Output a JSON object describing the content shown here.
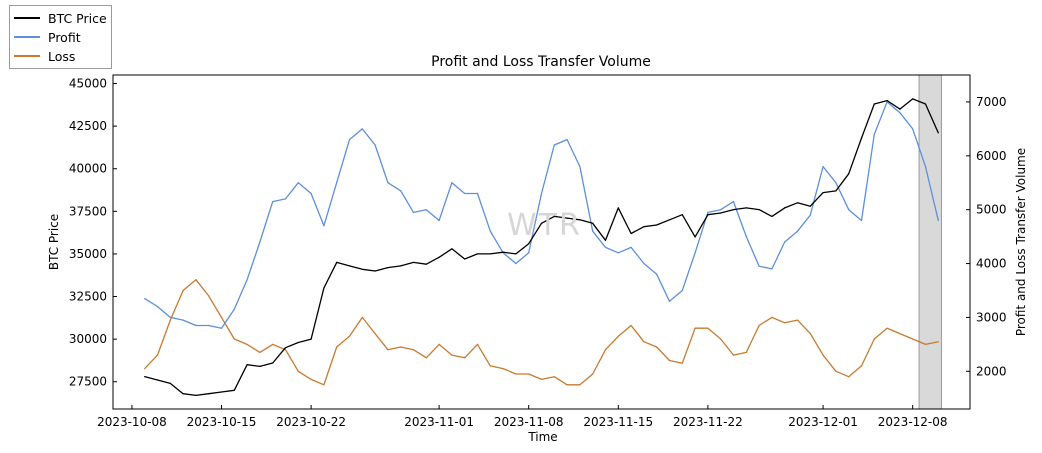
{
  "chart_data": {
    "type": "line",
    "title": "Profit and Loss Transfer Volume",
    "xlabel": "Time",
    "ylabel": "BTC Price",
    "y2label": "Profit and Loss Transfer Volume",
    "x_range": [
      "2023-10-09",
      "2023-12-10"
    ],
    "ylim": [
      25900,
      45500
    ],
    "y2lim": [
      1300,
      7500
    ],
    "x_ticks": [
      "2023-10-08",
      "2023-10-15",
      "2023-10-22",
      "2023-11-01",
      "2023-11-08",
      "2023-11-15",
      "2023-11-22",
      "2023-12-01",
      "2023-12-08"
    ],
    "y_ticks": [
      27500,
      30000,
      32500,
      35000,
      37500,
      40000,
      42500,
      45000
    ],
    "y_tick_labels": [
      "27500",
      "30000",
      "32500",
      "35000",
      "37500",
      "40000",
      "42500",
      "45000"
    ],
    "y2_ticks": [
      2000,
      3000,
      4000,
      5000,
      6000,
      7000
    ],
    "y2_tick_labels": [
      "2000",
      "3000",
      "4000",
      "5000",
      "6000",
      "7000"
    ],
    "shaded_region": {
      "start": "2023-12-08 12:00",
      "end": "2023-12-10 06:00"
    },
    "watermark": "WTR",
    "legend": {
      "position": "outside-top-left",
      "entries": [
        "BTC Price",
        "Profit",
        "Loss"
      ]
    },
    "series": [
      {
        "name": "BTC Price",
        "axis": "left",
        "color": "#000000",
        "x": [
          "2023-10-09",
          "2023-10-10",
          "2023-10-11",
          "2023-10-12",
          "2023-10-13",
          "2023-10-14",
          "2023-10-15",
          "2023-10-16",
          "2023-10-17",
          "2023-10-18",
          "2023-10-19",
          "2023-10-20",
          "2023-10-21",
          "2023-10-22",
          "2023-10-23",
          "2023-10-24",
          "2023-10-25",
          "2023-10-26",
          "2023-10-27",
          "2023-10-28",
          "2023-10-29",
          "2023-10-30",
          "2023-10-31",
          "2023-11-01",
          "2023-11-02",
          "2023-11-03",
          "2023-11-04",
          "2023-11-05",
          "2023-11-06",
          "2023-11-07",
          "2023-11-08",
          "2023-11-09",
          "2023-11-10",
          "2023-11-11",
          "2023-11-12",
          "2023-11-13",
          "2023-11-14",
          "2023-11-15",
          "2023-11-16",
          "2023-11-17",
          "2023-11-18",
          "2023-11-19",
          "2023-11-20",
          "2023-11-21",
          "2023-11-22",
          "2023-11-23",
          "2023-11-24",
          "2023-11-25",
          "2023-11-26",
          "2023-11-27",
          "2023-11-28",
          "2023-11-29",
          "2023-11-30",
          "2023-12-01",
          "2023-12-02",
          "2023-12-03",
          "2023-12-04",
          "2023-12-05",
          "2023-12-06",
          "2023-12-07",
          "2023-12-08",
          "2023-12-09",
          "2023-12-10"
        ],
        "values": [
          27800,
          27600,
          27400,
          26800,
          26700,
          26800,
          26900,
          27000,
          28500,
          28400,
          28600,
          29500,
          29800,
          30000,
          33000,
          34500,
          34300,
          34100,
          34000,
          34200,
          34300,
          34500,
          34400,
          34800,
          35300,
          34700,
          35000,
          35000,
          35100,
          35000,
          35600,
          36800,
          37200,
          37100,
          37000,
          36800,
          35800,
          37700,
          36200,
          36600,
          36700,
          37000,
          37300,
          36000,
          37300,
          37400,
          37600,
          37700,
          37600,
          37200,
          37700,
          38000,
          37800,
          38600,
          38700,
          39700,
          41800,
          43800,
          44000,
          43500,
          44100,
          43800,
          42100
        ]
      },
      {
        "name": "Profit",
        "axis": "right",
        "color": "#5d8fdb",
        "x": [
          "2023-10-09",
          "2023-10-10",
          "2023-10-11",
          "2023-10-12",
          "2023-10-13",
          "2023-10-14",
          "2023-10-15",
          "2023-10-16",
          "2023-10-17",
          "2023-10-18",
          "2023-10-19",
          "2023-10-20",
          "2023-10-21",
          "2023-10-22",
          "2023-10-23",
          "2023-10-24",
          "2023-10-25",
          "2023-10-26",
          "2023-10-27",
          "2023-10-28",
          "2023-10-29",
          "2023-10-30",
          "2023-10-31",
          "2023-11-01",
          "2023-11-02",
          "2023-11-03",
          "2023-11-04",
          "2023-11-05",
          "2023-11-06",
          "2023-11-07",
          "2023-11-08",
          "2023-11-09",
          "2023-11-10",
          "2023-11-11",
          "2023-11-12",
          "2023-11-13",
          "2023-11-14",
          "2023-11-15",
          "2023-11-16",
          "2023-11-17",
          "2023-11-18",
          "2023-11-19",
          "2023-11-20",
          "2023-11-21",
          "2023-11-22",
          "2023-11-23",
          "2023-11-24",
          "2023-11-25",
          "2023-11-26",
          "2023-11-27",
          "2023-11-28",
          "2023-11-29",
          "2023-11-30",
          "2023-12-01",
          "2023-12-02",
          "2023-12-03",
          "2023-12-04",
          "2023-12-05",
          "2023-12-06",
          "2023-12-07",
          "2023-12-08",
          "2023-12-09",
          "2023-12-10"
        ],
        "values": [
          3350,
          3200,
          3000,
          2950,
          2850,
          2850,
          2800,
          3150,
          3700,
          4400,
          5150,
          5200,
          5500,
          5300,
          4700,
          5500,
          6300,
          6500,
          6200,
          5500,
          5350,
          4950,
          5000,
          4800,
          5500,
          5300,
          5300,
          4600,
          4200,
          4000,
          4200,
          5300,
          6200,
          6300,
          5800,
          4600,
          4300,
          4200,
          4300,
          4000,
          3800,
          3300,
          3500,
          4200,
          4950,
          5000,
          5150,
          4500,
          3950,
          3900,
          4400,
          4600,
          4900,
          5800,
          5500,
          5000,
          4800,
          6400,
          7000,
          6800,
          6500,
          5800,
          4800
        ]
      },
      {
        "name": "Loss",
        "axis": "right",
        "color": "#c77a2e",
        "x": [
          "2023-10-09",
          "2023-10-10",
          "2023-10-11",
          "2023-10-12",
          "2023-10-13",
          "2023-10-14",
          "2023-10-15",
          "2023-10-16",
          "2023-10-17",
          "2023-10-18",
          "2023-10-19",
          "2023-10-20",
          "2023-10-21",
          "2023-10-22",
          "2023-10-23",
          "2023-10-24",
          "2023-10-25",
          "2023-10-26",
          "2023-10-27",
          "2023-10-28",
          "2023-10-29",
          "2023-10-30",
          "2023-10-31",
          "2023-11-01",
          "2023-11-02",
          "2023-11-03",
          "2023-11-04",
          "2023-11-05",
          "2023-11-06",
          "2023-11-07",
          "2023-11-08",
          "2023-11-09",
          "2023-11-10",
          "2023-11-11",
          "2023-11-12",
          "2023-11-13",
          "2023-11-14",
          "2023-11-15",
          "2023-11-16",
          "2023-11-17",
          "2023-11-18",
          "2023-11-19",
          "2023-11-20",
          "2023-11-21",
          "2023-11-22",
          "2023-11-23",
          "2023-11-24",
          "2023-11-25",
          "2023-11-26",
          "2023-11-27",
          "2023-11-28",
          "2023-11-29",
          "2023-11-30",
          "2023-12-01",
          "2023-12-02",
          "2023-12-03",
          "2023-12-04",
          "2023-12-05",
          "2023-12-06",
          "2023-12-07",
          "2023-12-08",
          "2023-12-09",
          "2023-12-10"
        ],
        "values": [
          2050,
          2300,
          2950,
          3500,
          3700,
          3400,
          3000,
          2600,
          2500,
          2350,
          2500,
          2400,
          2000,
          1850,
          1750,
          2450,
          2650,
          3000,
          2700,
          2400,
          2450,
          2400,
          2250,
          2500,
          2300,
          2250,
          2500,
          2100,
          2050,
          1950,
          1950,
          1850,
          1900,
          1750,
          1750,
          1950,
          2400,
          2650,
          2850,
          2550,
          2450,
          2200,
          2150,
          2800,
          2800,
          2600,
          2300,
          2350,
          2850,
          3000,
          2900,
          2950,
          2700,
          2300,
          2000,
          1900,
          2100,
          2600,
          2800,
          2700,
          2600,
          2500,
          2550
        ]
      }
    ]
  }
}
